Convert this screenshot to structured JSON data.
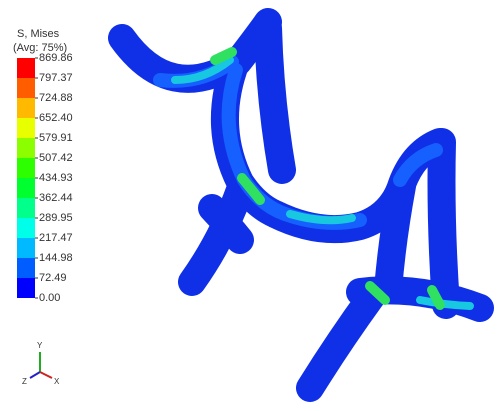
{
  "legend": {
    "title": "S, Mises",
    "subtitle": "(Avg: 75%)",
    "labels": [
      "869.86",
      "797.37",
      "724.88",
      "652.40",
      "579.91",
      "507.42",
      "434.93",
      "362.44",
      "289.95",
      "217.47",
      "144.98",
      "72.49",
      "0.00"
    ]
  },
  "triad": {
    "y": "Y",
    "z": "Z",
    "x": "X"
  }
}
